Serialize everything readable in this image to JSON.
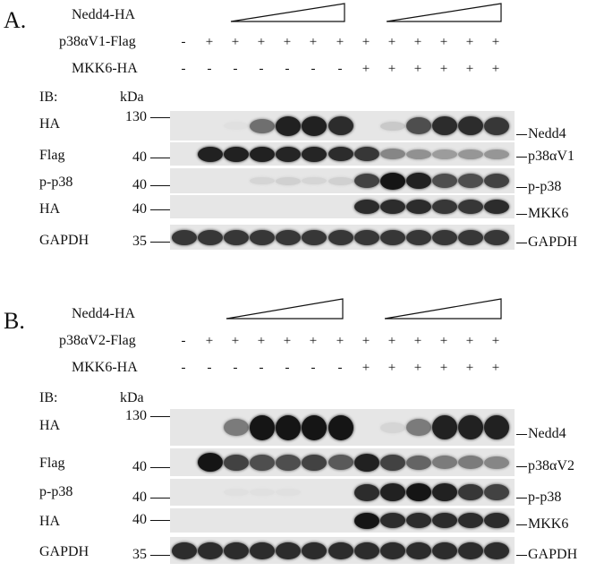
{
  "panels": [
    {
      "letter": "A.",
      "nedd4_label": "Nedd4-HA",
      "p38_label": "p38αV1-Flag",
      "p38_signs": [
        "-",
        "+",
        "+",
        "+",
        "+",
        "+",
        "+",
        "+",
        "+",
        "+",
        "+",
        "+",
        "+"
      ],
      "mkk6_label": "MKK6-HA",
      "mkk6_signs": [
        "-",
        "-",
        "-",
        "-",
        "-",
        "-",
        "-",
        "+",
        "+",
        "+",
        "+",
        "+",
        "+"
      ],
      "ib_label": "IB:",
      "kda_label": "kDa",
      "rows": [
        {
          "ib": "HA",
          "marker": "130",
          "target": "Nedd4"
        },
        {
          "ib": "Flag",
          "marker": "40",
          "target": "p38αV1"
        },
        {
          "ib": "p-p38",
          "marker": "40",
          "target": "p-p38"
        },
        {
          "ib": "HA",
          "marker": "40",
          "target": "MKK6"
        },
        {
          "ib": "GAPDH",
          "marker": "35",
          "target": "GAPDH"
        }
      ]
    },
    {
      "letter": "B.",
      "nedd4_label": "Nedd4-HA",
      "p38_label": "p38αV2-Flag",
      "p38_signs": [
        "-",
        "+",
        "+",
        "+",
        "+",
        "+",
        "+",
        "+",
        "+",
        "+",
        "+",
        "+",
        "+"
      ],
      "mkk6_label": "MKK6-HA",
      "mkk6_signs": [
        "-",
        "-",
        "-",
        "-",
        "-",
        "-",
        "-",
        "+",
        "+",
        "+",
        "+",
        "+",
        "+"
      ],
      "ib_label": "IB:",
      "kda_label": "kDa",
      "rows": [
        {
          "ib": "HA",
          "marker": "130",
          "target": "Nedd4"
        },
        {
          "ib": "Flag",
          "marker": "40",
          "target": "p38αV2"
        },
        {
          "ib": "p-p38",
          "marker": "40",
          "target": "p-p38"
        },
        {
          "ib": "HA",
          "marker": "40",
          "target": "MKK6"
        },
        {
          "ib": "GAPDH",
          "marker": "35",
          "target": "GAPDH"
        }
      ]
    }
  ]
}
